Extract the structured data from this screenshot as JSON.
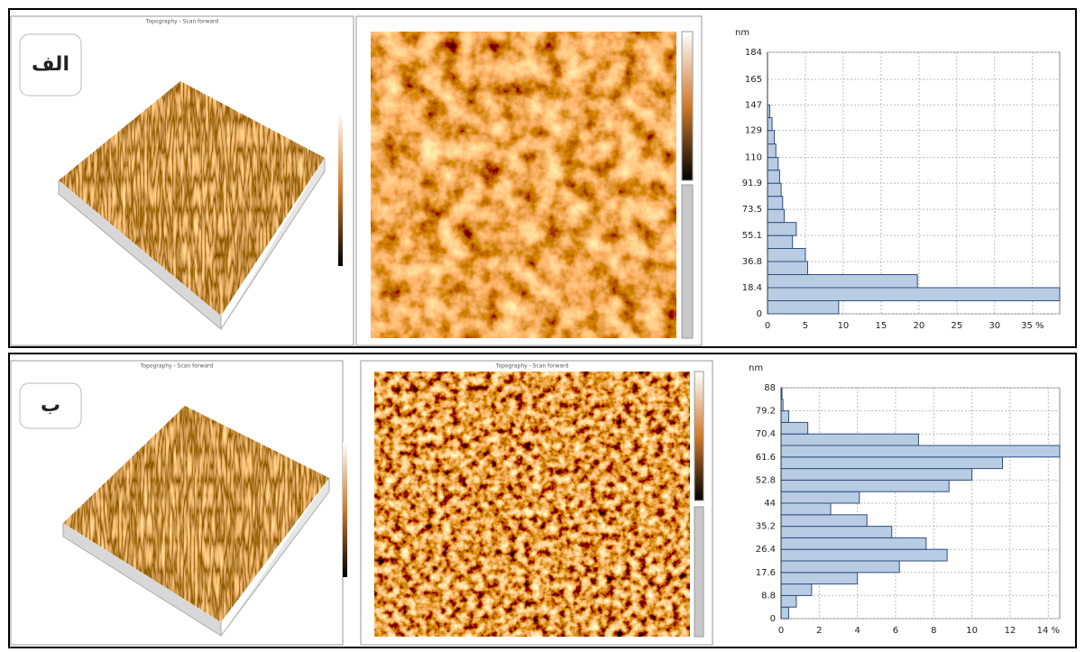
{
  "panels": [
    {
      "label": "الف",
      "image_titles": [
        "Topography - Scan forward"
      ]
    },
    {
      "label": "ب",
      "image_titles": [
        "Topography - Scan forward",
        "Topography - Scan forward"
      ]
    }
  ],
  "chart_data": [
    {
      "type": "histogram",
      "orientation": "horizontal",
      "y_label": "nm",
      "color": "#b8cce4",
      "bins": [
        0,
        9.2,
        18.4,
        27.6,
        36.8,
        46,
        55.1,
        64.3,
        73.5,
        82.7,
        91.9,
        101.1,
        110,
        119.5,
        129,
        138,
        147
      ],
      "values": [
        9.4,
        38.6,
        19.8,
        5.3,
        5.0,
        3.3,
        3.8,
        2.2,
        2.0,
        1.8,
        1.6,
        1.4,
        1.1,
        0.9,
        0.6,
        0.3
      ],
      "ylim": [
        0,
        184
      ],
      "yticks": [
        0,
        18.4,
        36.8,
        55.1,
        73.5,
        91.9,
        110,
        129,
        147,
        165,
        184
      ],
      "xlim": [
        0,
        38.6
      ],
      "xticks": [
        0,
        5,
        10,
        15,
        20,
        25,
        30,
        {
          "value": 35,
          "label": "35 %"
        }
      ],
      "grid": true
    },
    {
      "type": "histogram",
      "orientation": "horizontal",
      "y_label": "nm",
      "color": "#b8cce4",
      "bins": [
        0,
        4.4,
        8.8,
        13.2,
        17.6,
        22,
        26.4,
        30.8,
        35.2,
        39.6,
        44,
        48.4,
        52.8,
        57.2,
        61.6,
        66,
        70.4,
        74.8,
        79.2,
        83.6,
        88
      ],
      "values": [
        0.4,
        0.8,
        1.6,
        4.0,
        6.2,
        8.7,
        7.6,
        5.8,
        4.5,
        2.6,
        4.1,
        8.8,
        10.0,
        11.6,
        14.6,
        7.2,
        1.4,
        0.4,
        0.1,
        0.05
      ],
      "ylim": [
        0,
        88
      ],
      "yticks": [
        0,
        8.8,
        17.6,
        26.4,
        35.2,
        44,
        52.8,
        61.6,
        70.4,
        79.2,
        88
      ],
      "xlim": [
        0,
        14.6
      ],
      "xticks": [
        0,
        2,
        4,
        6,
        8,
        10,
        12,
        {
          "value": 14,
          "label": "14 %"
        }
      ],
      "grid": true
    }
  ]
}
